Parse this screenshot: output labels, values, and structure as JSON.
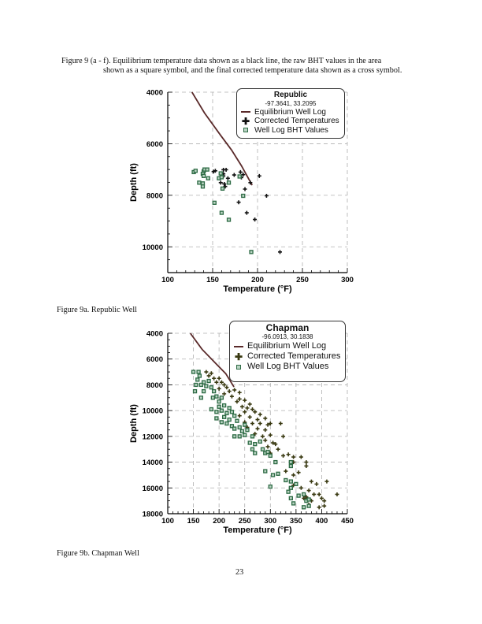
{
  "caption_main": {
    "line1": "Figure 9 (a - f).  Equilibrium temperature data shown as a black line,  the raw BHT values in the area",
    "line2": "shown as a square symbol, and the final corrected temperature data shown as a cross symbol."
  },
  "caption_a": "Figure 9a.  Republic Well",
  "caption_b": "Figure 9b.  Chapman Well",
  "page_number": "23",
  "colors": {
    "equilibrium": "#5a2a2a",
    "bht": "#2e6b45",
    "corrected_a": "#111111",
    "corrected_b": "#3a3a12",
    "grid": "#b0b0b0"
  },
  "chart_data": [
    {
      "type": "scatter",
      "title": "Republic",
      "subtitle": "-97.3641, 33.2095",
      "xlabel": "Temperature (°F)",
      "ylabel": "Depth (ft)",
      "xlim": [
        100,
        300
      ],
      "ylim": [
        4000,
        11000
      ],
      "y_inverted": true,
      "xticks": [
        100,
        150,
        200,
        250,
        300
      ],
      "yticks": [
        4000,
        6000,
        8000,
        10000
      ],
      "grid": true,
      "legend_position": "top-right",
      "legend": [
        "Equilibrium Well Log",
        "Corrected Temperatures",
        "Well Log BHT Values"
      ],
      "series": [
        {
          "name": "Equilibrium Well Log",
          "kind": "line",
          "points": [
            [
              127,
              4000
            ],
            [
              141,
              4810
            ],
            [
              159,
              5680
            ],
            [
              171,
              6240
            ],
            [
              182,
              6850
            ],
            [
              194,
              7610
            ]
          ]
        },
        {
          "name": "Corrected Temperatures",
          "kind": "cross",
          "points": [
            [
              151,
              7080
            ],
            [
              153,
              7050
            ],
            [
              159,
              7510
            ],
            [
              162,
              7250
            ],
            [
              162,
              7010
            ],
            [
              165,
              7010
            ],
            [
              167,
              7340
            ],
            [
              163,
              7560
            ],
            [
              164,
              7660
            ],
            [
              174,
              7210
            ],
            [
              181,
              7100
            ],
            [
              182,
              7310
            ],
            [
              184,
              7200
            ],
            [
              192,
              7510
            ],
            [
              186,
              7760
            ],
            [
              202,
              7250
            ],
            [
              210,
              8020
            ],
            [
              179,
              8270
            ],
            [
              188,
              8680
            ],
            [
              197,
              8940
            ],
            [
              225,
              10200
            ],
            [
              162,
              7170
            ]
          ]
        },
        {
          "name": "Well Log BHT Values",
          "kind": "square",
          "points": [
            [
              129,
              7100
            ],
            [
              131,
              7050
            ],
            [
              140,
              7070
            ],
            [
              141,
              7000
            ],
            [
              144,
              7000
            ],
            [
              139,
              7170
            ],
            [
              140,
              7250
            ],
            [
              145,
              7340
            ],
            [
              135,
              7510
            ],
            [
              139,
              7540
            ],
            [
              139,
              7660
            ],
            [
              157,
              7340
            ],
            [
              159,
              7150
            ],
            [
              160,
              7300
            ],
            [
              161,
              7740
            ],
            [
              168,
              7510
            ],
            [
              180,
              7270
            ],
            [
              184,
              8020
            ],
            [
              152,
              8290
            ],
            [
              160,
              8680
            ],
            [
              168,
              8950
            ],
            [
              193,
              10200
            ]
          ]
        }
      ]
    },
    {
      "type": "scatter",
      "title": "Chapman",
      "subtitle": "-96.0913, 30.1838",
      "xlabel": "Temperature (°F)",
      "ylabel": "Depth (ft)",
      "xlim": [
        100,
        450
      ],
      "ylim": [
        4000,
        18000
      ],
      "y_inverted": true,
      "xticks": [
        100,
        150,
        200,
        250,
        300,
        350,
        400,
        450
      ],
      "yticks": [
        4000,
        6000,
        8000,
        10000,
        12000,
        14000,
        16000,
        18000
      ],
      "grid": true,
      "legend_position": "top-right",
      "legend": [
        "Equilibrium Well Log",
        "Corrected Temperatures",
        "Well Log BHT Values"
      ],
      "series": [
        {
          "name": "Equilibrium Well Log",
          "kind": "line",
          "points": [
            [
              144,
              4000
            ],
            [
              167,
              5250
            ],
            [
              198,
              6520
            ],
            [
              213,
              7130
            ],
            [
              229,
              8160
            ]
          ]
        },
        {
          "name": "Corrected Temperatures",
          "kind": "cross",
          "points": [
            [
              175,
              7000
            ],
            [
              185,
              7100
            ],
            [
              180,
              7300
            ],
            [
              190,
              7500
            ],
            [
              200,
              7500
            ],
            [
              195,
              7800
            ],
            [
              205,
              7800
            ],
            [
              210,
              8000
            ],
            [
              215,
              8200
            ],
            [
              200,
              8300
            ],
            [
              220,
              8500
            ],
            [
              230,
              8400
            ],
            [
              240,
              8600
            ],
            [
              210,
              8700
            ],
            [
              225,
              8900
            ],
            [
              240,
              9100
            ],
            [
              250,
              9200
            ],
            [
              235,
              9300
            ],
            [
              260,
              9500
            ],
            [
              245,
              9700
            ],
            [
              255,
              9800
            ],
            [
              265,
              9900
            ],
            [
              250,
              10100
            ],
            [
              270,
              10100
            ],
            [
              280,
              10300
            ],
            [
              240,
              10400
            ],
            [
              260,
              10500
            ],
            [
              275,
              10700
            ],
            [
              290,
              10600
            ],
            [
              250,
              10900
            ],
            [
              265,
              11000
            ],
            [
              280,
              11000
            ],
            [
              295,
              11100
            ],
            [
              300,
              11000
            ],
            [
              320,
              11000
            ],
            [
              255,
              11300
            ],
            [
              275,
              11400
            ],
            [
              290,
              11500
            ],
            [
              270,
              11800
            ],
            [
              285,
              12000
            ],
            [
              300,
              11900
            ],
            [
              325,
              12000
            ],
            [
              290,
              12300
            ],
            [
              305,
              12500
            ],
            [
              295,
              12800
            ],
            [
              310,
              12600
            ],
            [
              315,
              13000
            ],
            [
              300,
              13300
            ],
            [
              325,
              13500
            ],
            [
              335,
              13400
            ],
            [
              345,
              13600
            ],
            [
              360,
              13600
            ],
            [
              345,
              14000
            ],
            [
              370,
              14000
            ],
            [
              370,
              14300
            ],
            [
              330,
              14700
            ],
            [
              345,
              15000
            ],
            [
              355,
              14800
            ],
            [
              380,
              15500
            ],
            [
              390,
              15700
            ],
            [
              410,
              15500
            ],
            [
              345,
              15800
            ],
            [
              360,
              16000
            ],
            [
              375,
              16200
            ],
            [
              385,
              16500
            ],
            [
              395,
              16500
            ],
            [
              430,
              16500
            ],
            [
              370,
              16700
            ],
            [
              380,
              17000
            ],
            [
              400,
              16800
            ],
            [
              405,
              17000
            ],
            [
              405,
              17400
            ],
            [
              395,
              17500
            ],
            [
              365,
              16800
            ],
            [
              375,
              17300
            ]
          ]
        },
        {
          "name": "Well Log BHT Values",
          "kind": "square",
          "points": [
            [
              150,
              7000
            ],
            [
              160,
              7000
            ],
            [
              162,
              7300
            ],
            [
              158,
              7600
            ],
            [
              170,
              7800
            ],
            [
              155,
              8000
            ],
            [
              165,
              8000
            ],
            [
              175,
              8100
            ],
            [
              180,
              7700
            ],
            [
              185,
              8200
            ],
            [
              153,
              8500
            ],
            [
              170,
              8500
            ],
            [
              190,
              8500
            ],
            [
              165,
              9000
            ],
            [
              188,
              9000
            ],
            [
              195,
              8900
            ],
            [
              205,
              9000
            ],
            [
              200,
              9300
            ],
            [
              185,
              9900
            ],
            [
              200,
              9700
            ],
            [
              210,
              9600
            ],
            [
              220,
              9800
            ],
            [
              195,
              10100
            ],
            [
              205,
              10000
            ],
            [
              215,
              10200
            ],
            [
              225,
              10100
            ],
            [
              230,
              10400
            ],
            [
              195,
              10600
            ],
            [
              210,
              10500
            ],
            [
              220,
              10700
            ],
            [
              235,
              10800
            ],
            [
              205,
              10900
            ],
            [
              215,
              11000
            ],
            [
              225,
              11200
            ],
            [
              230,
              11400
            ],
            [
              240,
              11300
            ],
            [
              250,
              11100
            ],
            [
              245,
              11600
            ],
            [
              255,
              11500
            ],
            [
              230,
              12000
            ],
            [
              240,
              12000
            ],
            [
              250,
              11900
            ],
            [
              265,
              12000
            ],
            [
              260,
              12500
            ],
            [
              270,
              12600
            ],
            [
              280,
              12400
            ],
            [
              265,
              13000
            ],
            [
              285,
              13000
            ],
            [
              270,
              13300
            ],
            [
              290,
              13300
            ],
            [
              300,
              13500
            ],
            [
              295,
              13200
            ],
            [
              310,
              14000
            ],
            [
              340,
              14000
            ],
            [
              340,
              14300
            ],
            [
              290,
              14700
            ],
            [
              305,
              15000
            ],
            [
              315,
              14900
            ],
            [
              300,
              15900
            ],
            [
              340,
              15500
            ],
            [
              350,
              15700
            ],
            [
              340,
              16000
            ],
            [
              335,
              16300
            ],
            [
              355,
              16600
            ],
            [
              365,
              16500
            ],
            [
              340,
              16800
            ],
            [
              345,
              17200
            ],
            [
              370,
              17000
            ],
            [
              375,
              17400
            ],
            [
              365,
              17500
            ],
            [
              375,
              16900
            ],
            [
              330,
              15400
            ]
          ]
        }
      ]
    }
  ]
}
